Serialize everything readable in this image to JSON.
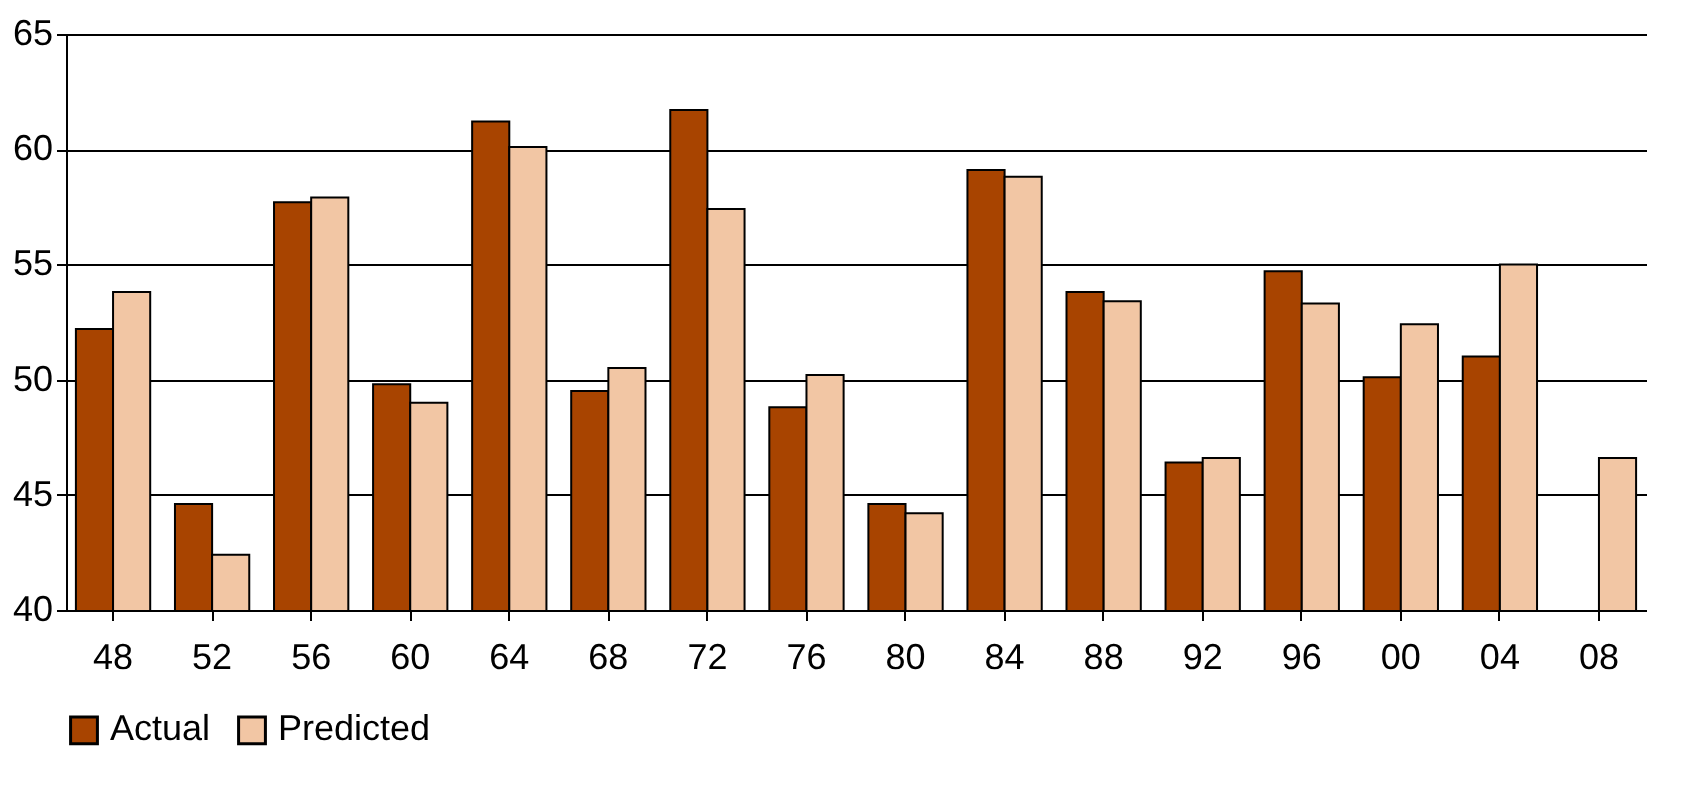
{
  "chart_data": {
    "type": "bar",
    "categories": [
      "48",
      "52",
      "56",
      "60",
      "64",
      "68",
      "72",
      "76",
      "80",
      "84",
      "88",
      "92",
      "96",
      "00",
      "04",
      "08"
    ],
    "series": [
      {
        "name": "Actual",
        "color": "#a84400",
        "values": [
          52.2,
          44.6,
          57.7,
          49.8,
          61.2,
          49.5,
          61.7,
          48.8,
          44.6,
          59.1,
          53.8,
          46.4,
          54.7,
          50.1,
          51.0,
          null
        ]
      },
      {
        "name": "Predicted",
        "color": "#f2c6a4",
        "values": [
          53.8,
          42.4,
          57.9,
          49.0,
          60.1,
          50.5,
          57.4,
          50.2,
          44.2,
          58.8,
          53.4,
          46.6,
          53.3,
          52.4,
          55.0,
          46.6
        ]
      }
    ],
    "ylim": [
      40,
      65
    ],
    "yticks": [
      40,
      45,
      50,
      55,
      60,
      65
    ],
    "grid": "y",
    "legend": "bottom"
  }
}
